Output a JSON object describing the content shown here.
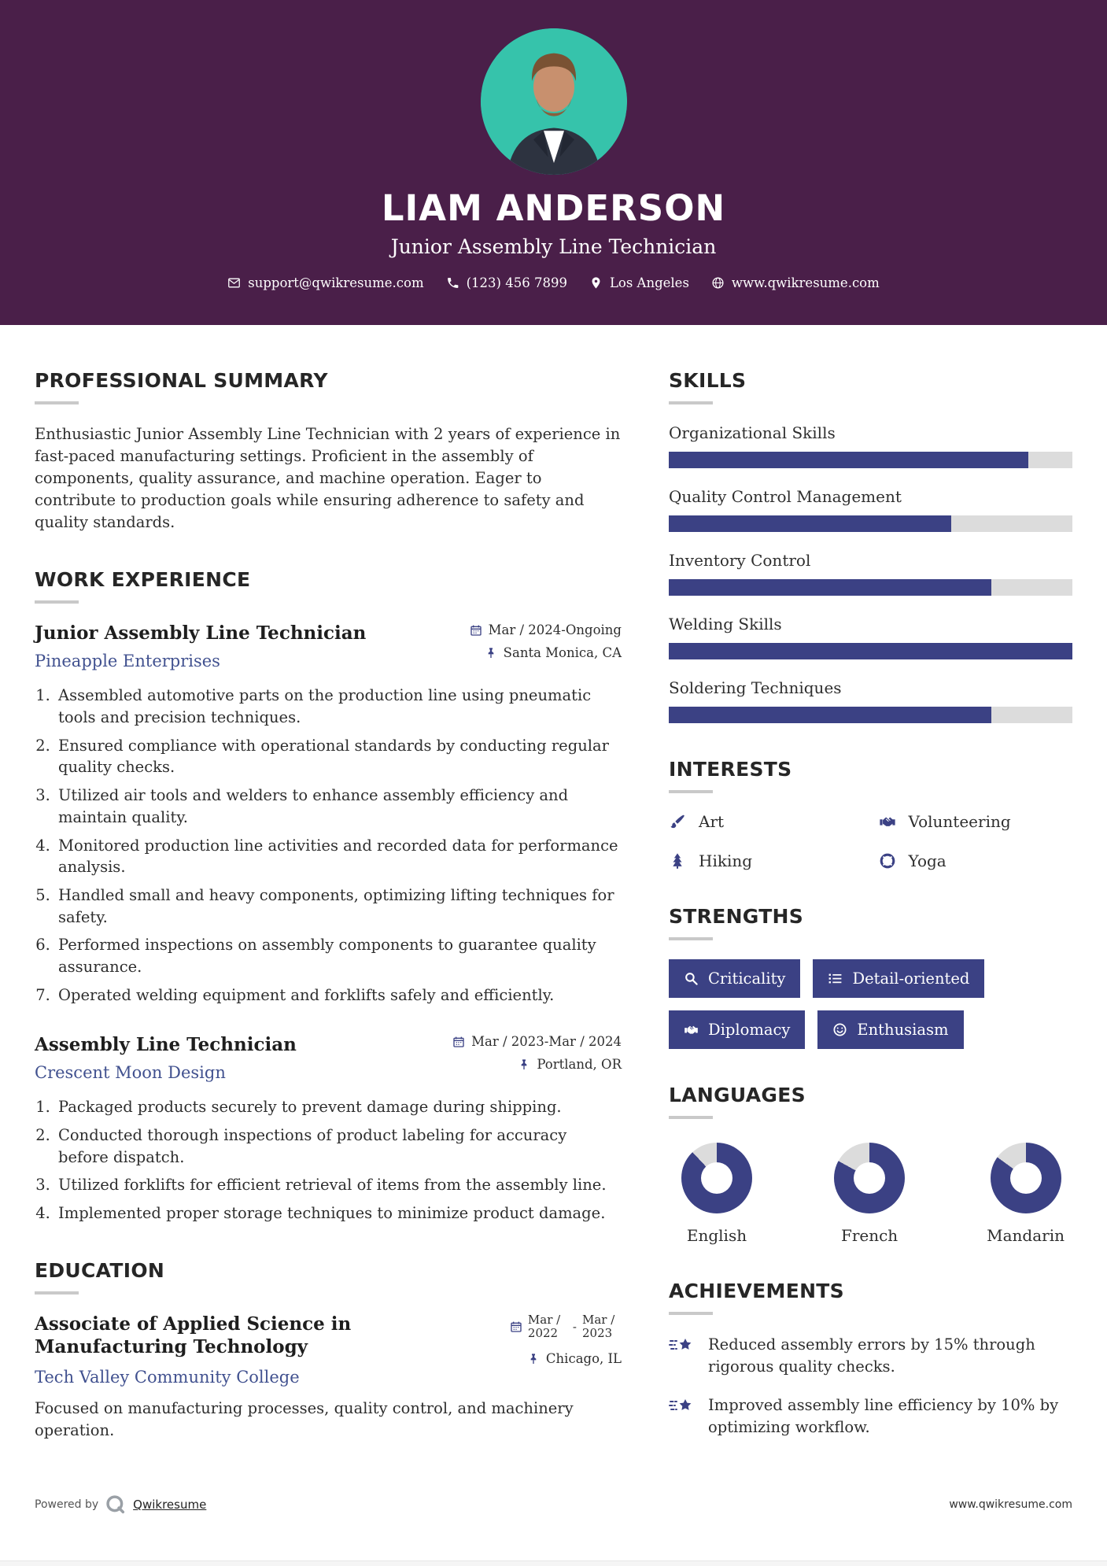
{
  "header": {
    "name": "LIAM ANDERSON",
    "title": "Junior Assembly Line Technician",
    "contact": {
      "email": "support@qwikresume.com",
      "phone": "(123) 456 7899",
      "location": "Los Angeles",
      "website": "www.qwikresume.com"
    }
  },
  "summary": {
    "heading": "PROFESSIONAL SUMMARY",
    "text": "Enthusiastic Junior Assembly Line Technician with 2 years of experience in fast-paced manufacturing settings. Proficient in the assembly of components, quality assurance, and machine operation. Eager to contribute to production goals while ensuring adherence to safety and quality standards."
  },
  "experience": {
    "heading": "WORK EXPERIENCE",
    "jobs": [
      {
        "title": "Junior Assembly Line Technician",
        "company": "Pineapple Enterprises",
        "dates": "Mar / 2024-Ongoing",
        "location": "Santa Monica, CA",
        "bullets": [
          "Assembled automotive parts on the production line using pneumatic tools and precision techniques.",
          "Ensured compliance with operational standards by conducting regular quality checks.",
          "Utilized air tools and welders to enhance assembly efficiency and maintain quality.",
          "Monitored production line activities and recorded data for performance analysis.",
          "Handled small and heavy components, optimizing lifting techniques for safety.",
          "Performed inspections on assembly components to guarantee quality assurance.",
          "Operated welding equipment and forklifts safely and efficiently."
        ]
      },
      {
        "title": "Assembly Line Technician",
        "company": "Crescent Moon Design",
        "dates": "Mar / 2023-Mar / 2024",
        "location": "Portland, OR",
        "bullets": [
          "Packaged products securely to prevent damage during shipping.",
          "Conducted thorough inspections of product labeling for accuracy before dispatch.",
          "Utilized forklifts for efficient retrieval of items from the assembly line.",
          "Implemented proper storage techniques to minimize product damage."
        ]
      }
    ]
  },
  "education": {
    "heading": "EDUCATION",
    "degree": "Associate of Applied Science in Manufacturing Technology",
    "school": "Tech Valley Community College",
    "date_from": "Mar / 2022",
    "date_separator": "-",
    "date_to": "Mar / 2023",
    "location": "Chicago, IL",
    "description": "Focused on manufacturing processes, quality control, and machinery operation."
  },
  "skills": {
    "heading": "SKILLS",
    "items": [
      {
        "label": "Organizational Skills",
        "percent": 89
      },
      {
        "label": "Quality Control Management",
        "percent": 70
      },
      {
        "label": "Inventory Control",
        "percent": 80
      },
      {
        "label": "Welding Skills",
        "percent": 100
      },
      {
        "label": "Soldering Techniques",
        "percent": 80
      }
    ]
  },
  "interests": {
    "heading": "INTERESTS",
    "items": [
      {
        "label": "Art",
        "icon": "paintbrush-icon"
      },
      {
        "label": "Volunteering",
        "icon": "handshake-icon"
      },
      {
        "label": "Hiking",
        "icon": "tree-icon"
      },
      {
        "label": "Yoga",
        "icon": "lifebuoy-icon"
      }
    ]
  },
  "strengths": {
    "heading": "STRENGTHS",
    "items": [
      {
        "label": "Criticality",
        "icon": "magnifier-icon"
      },
      {
        "label": "Detail-oriented",
        "icon": "list-icon"
      },
      {
        "label": "Diplomacy",
        "icon": "handshake-icon"
      },
      {
        "label": "Enthusiasm",
        "icon": "smiley-icon"
      }
    ]
  },
  "languages": {
    "heading": "LANGUAGES",
    "items": [
      {
        "label": "English",
        "percent": 88
      },
      {
        "label": "French",
        "percent": 83
      },
      {
        "label": "Mandarin",
        "percent": 85
      }
    ]
  },
  "achievements": {
    "heading": "ACHIEVEMENTS",
    "items": [
      "Reduced assembly errors by 15% through rigorous quality checks.",
      "Improved assembly line efficiency by 10% by optimizing workflow."
    ]
  },
  "footer": {
    "powered_by": "Powered by",
    "brand": "Qwikresume",
    "website": "www.qwikresume.com"
  },
  "colors": {
    "header_bg": "#4A1F49",
    "accent_navy": "#3B4184",
    "photo_bg": "#36C3AB",
    "track": "#DCDCDC"
  }
}
